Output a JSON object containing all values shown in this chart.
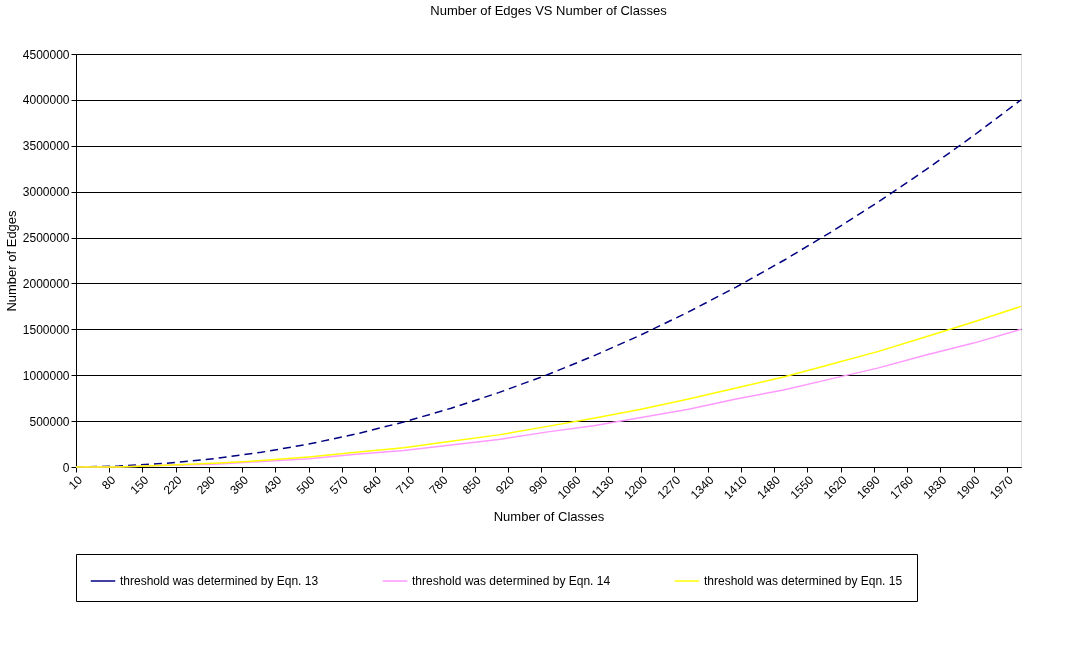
{
  "chart_data": {
    "type": "line",
    "title": "Number of Edges VS Number of Classes",
    "xlabel": "Number of Classes",
    "ylabel": "Number of Edges",
    "x": [
      10,
      100,
      200,
      300,
      400,
      500,
      600,
      700,
      800,
      900,
      1000,
      1100,
      1200,
      1300,
      1400,
      1500,
      1600,
      1700,
      1800,
      1900,
      2000
    ],
    "series": [
      {
        "name": "threshold was determined by Eqn. 13",
        "color": "#000080",
        "line_style": "dashed",
        "values": [
          0,
          10000,
          40000,
          90000,
          160000,
          250000,
          360000,
          490000,
          640000,
          810000,
          1000000,
          1210000,
          1440000,
          1690000,
          1960000,
          2250000,
          2560000,
          2890000,
          3240000,
          3610000,
          4000000
        ]
      },
      {
        "name": "threshold was determined by Eqn. 14",
        "color": "#ff99ff",
        "line_style": "solid",
        "values": [
          0,
          0,
          20000,
          30000,
          60000,
          90000,
          140000,
          180000,
          240000,
          300000,
          380000,
          450000,
          540000,
          630000,
          740000,
          840000,
          960000,
          1080000,
          1220000,
          1350000,
          1500000
        ]
      },
      {
        "name": "threshold was determined by Eqn. 15",
        "color": "#ffff00",
        "line_style": "solid",
        "values": [
          0,
          0,
          20000,
          40000,
          70000,
          110000,
          160000,
          210000,
          280000,
          350000,
          440000,
          530000,
          630000,
          740000,
          860000,
          980000,
          1120000,
          1260000,
          1420000,
          1580000,
          1750000
        ]
      }
    ],
    "xlim": [
      10,
      2000
    ],
    "xticks": [
      10,
      80,
      150,
      220,
      290,
      360,
      430,
      500,
      570,
      640,
      710,
      780,
      850,
      920,
      990,
      1060,
      1130,
      1200,
      1270,
      1340,
      1410,
      1480,
      1550,
      1620,
      1690,
      1760,
      1830,
      1900,
      1970
    ],
    "ylim": [
      0,
      4500000
    ],
    "yticks": [
      0,
      500000,
      1000000,
      1500000,
      2000000,
      2500000,
      3000000,
      3500000,
      4000000,
      4500000
    ],
    "grid": "y",
    "legend": "bottom",
    "marker": "none"
  }
}
